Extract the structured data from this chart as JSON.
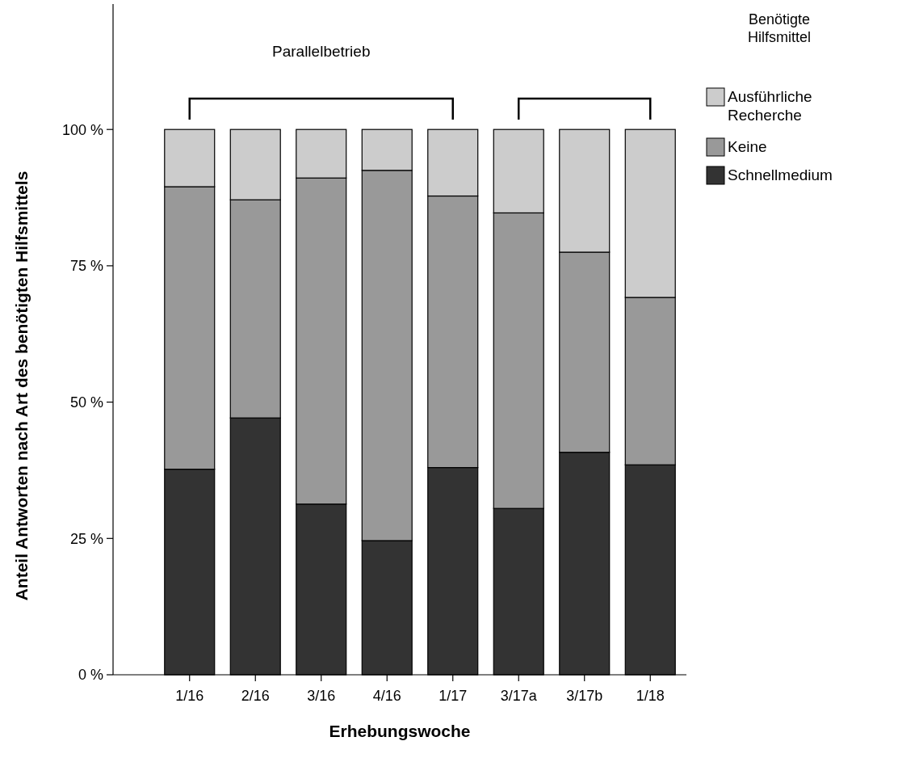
{
  "chart_data": {
    "type": "bar",
    "stacked": true,
    "xlabel": "Erhebungswoche",
    "ylabel": "Anteil Antworten nach Art des benötigten Hilfsmittels",
    "legend_title": "Benötigte Hilfsmittel",
    "legend": "right",
    "annotations": [
      "Parallelbetrieb"
    ],
    "categories": [
      "1/16",
      "2/16",
      "3/16",
      "4/16",
      "1/17",
      "3/17a",
      "3/17b",
      "1/18"
    ],
    "ylim": [
      0,
      123
    ],
    "yticks": [
      {
        "value": 0,
        "label": "0 %"
      },
      {
        "value": 25,
        "label": "25 %"
      },
      {
        "value": 50,
        "label": "50 %"
      },
      {
        "value": 75,
        "label": "75 %"
      },
      {
        "value": 100,
        "label": "100 %"
      }
    ],
    "series": [
      {
        "name": "Schnellmedium",
        "color": "#333333",
        "values": [
          37.7,
          47.1,
          31.3,
          24.6,
          38.0,
          30.5,
          40.8,
          38.5
        ]
      },
      {
        "name": "Keine",
        "color": "#999999",
        "values": [
          51.8,
          40.0,
          59.8,
          67.9,
          49.8,
          54.2,
          36.7,
          30.7
        ]
      },
      {
        "name": "Ausführliche Recherche",
        "color": "#cccccc",
        "values": [
          10.5,
          12.9,
          8.9,
          7.5,
          12.2,
          15.3,
          22.5,
          30.8
        ]
      }
    ]
  }
}
